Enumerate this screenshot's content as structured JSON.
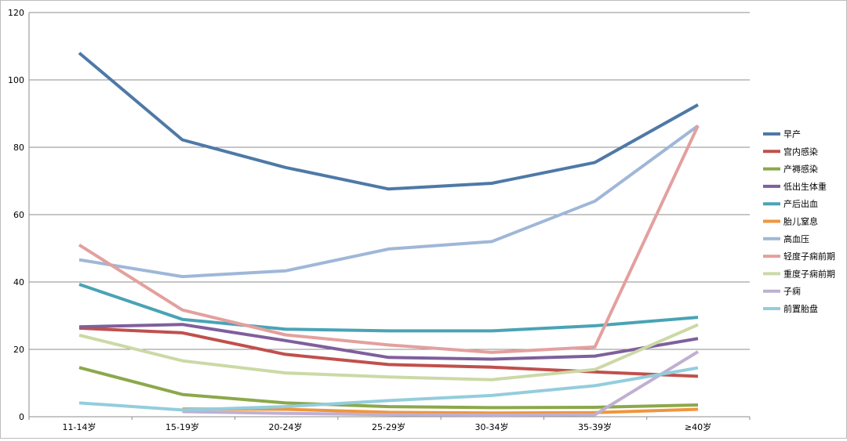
{
  "chart_data": {
    "type": "line",
    "title": "",
    "xlabel": "",
    "ylabel": "",
    "ylim": [
      0,
      120
    ],
    "y_ticks": [
      0,
      20,
      40,
      60,
      80,
      100,
      120
    ],
    "grid": true,
    "legend": "right",
    "categories": [
      "11-14岁",
      "15-19岁",
      "20-24岁",
      "25-29岁",
      "30-34岁",
      "35-39岁",
      "≥40岁"
    ],
    "series": [
      {
        "name": "早产",
        "color": "#4e79a7",
        "values": [
          108,
          82.2,
          74.0,
          67.6,
          69.3,
          75.5,
          92.6
        ]
      },
      {
        "name": "宫内感染",
        "color": "#c0504d",
        "values": [
          26.3,
          24.9,
          18.5,
          15.5,
          14.7,
          13.3,
          12.0
        ]
      },
      {
        "name": "产褥感染",
        "color": "#8ca84b",
        "values": [
          14.6,
          6.6,
          4.1,
          3.0,
          2.7,
          2.8,
          3.5
        ]
      },
      {
        "name": "低出生体重",
        "color": "#7f5f9c",
        "values": [
          26.7,
          27.4,
          22.6,
          17.6,
          17.1,
          18.0,
          23.2
        ]
      },
      {
        "name": "产后出血",
        "color": "#4aa3b5",
        "values": [
          39.3,
          28.9,
          26.0,
          25.5,
          25.5,
          27.0,
          29.5
        ]
      },
      {
        "name": "胎儿窒息",
        "color": "#f0953c",
        "values": [
          null,
          2.3,
          2.2,
          1.3,
          1.1,
          1.2,
          2.2
        ]
      },
      {
        "name": "高血压",
        "color": "#9fb7d8",
        "values": [
          46.6,
          41.6,
          43.3,
          49.8,
          52.0,
          64.0,
          86.4
        ]
      },
      {
        "name": "轻度子痫前期",
        "color": "#e3a09e",
        "values": [
          51.0,
          31.7,
          24.3,
          21.3,
          19.1,
          20.7,
          86.4
        ]
      },
      {
        "name": "重度子痫前期",
        "color": "#cbd9a6",
        "values": [
          24.2,
          16.6,
          13.0,
          11.8,
          11.0,
          14.0,
          27.3
        ]
      },
      {
        "name": "子痫",
        "color": "#bfb0d2",
        "values": [
          null,
          1.5,
          1.0,
          0.6,
          0.5,
          0.6,
          19.3
        ]
      },
      {
        "name": "前置胎盘",
        "color": "#93cddd",
        "values": [
          4.1,
          2.0,
          3.0,
          4.8,
          6.3,
          9.2,
          14.5
        ]
      }
    ]
  }
}
